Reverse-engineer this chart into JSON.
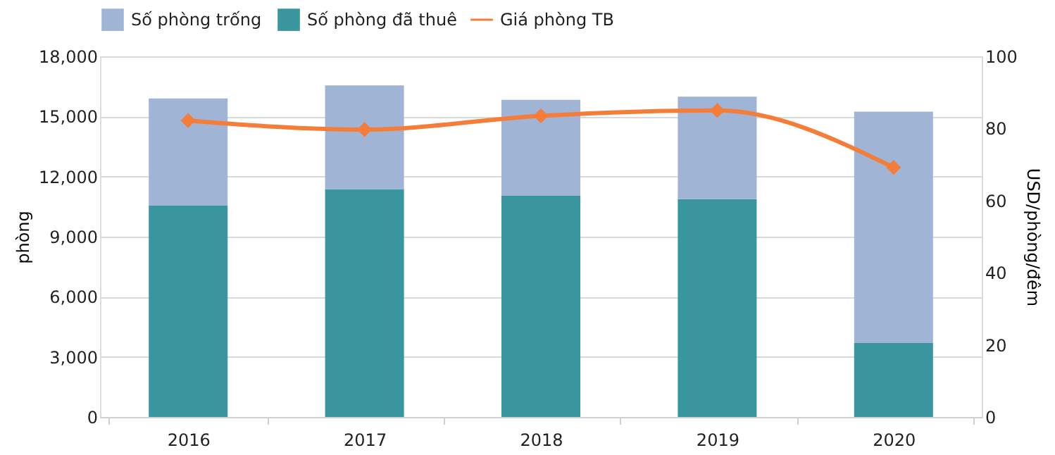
{
  "chart_data": {
    "type": "bar",
    "stacked": true,
    "categories": [
      "2016",
      "2017",
      "2018",
      "2019",
      "2020"
    ],
    "ylabel": "phòng",
    "y2label": "USD/phòng/đêm",
    "series": [
      {
        "name": "Số phòng đã thuê",
        "color": "#3a969e",
        "values": [
          10550,
          11370,
          11040,
          10870,
          3690
        ]
      },
      {
        "name": "Số phòng trống",
        "color": "#a0b4d6",
        "values": [
          5350,
          5180,
          4790,
          5120,
          11550
        ]
      },
      {
        "name": "Giá phòng TB",
        "type": "line",
        "axis": "y2",
        "color": "#f47d3a",
        "marker": "diamond",
        "line_style": "solid",
        "values": [
          82.2,
          79.7,
          83.5,
          85,
          69.2
        ]
      }
    ],
    "ylim": [
      0,
      18000
    ],
    "yticks": [
      0,
      {
        "value": 3000,
        "label": "3,000"
      },
      {
        "value": 6000,
        "label": "6,000"
      },
      {
        "value": 9000,
        "label": "9,000"
      },
      {
        "value": 12000,
        "label": "12,000"
      },
      {
        "value": 15000,
        "label": "15,000"
      },
      {
        "value": 18000,
        "label": "18,000"
      }
    ],
    "y2lim": [
      0,
      100
    ],
    "y2ticks": [
      0,
      20,
      40,
      60,
      80,
      100
    ],
    "grid": "y",
    "legend": "top"
  }
}
